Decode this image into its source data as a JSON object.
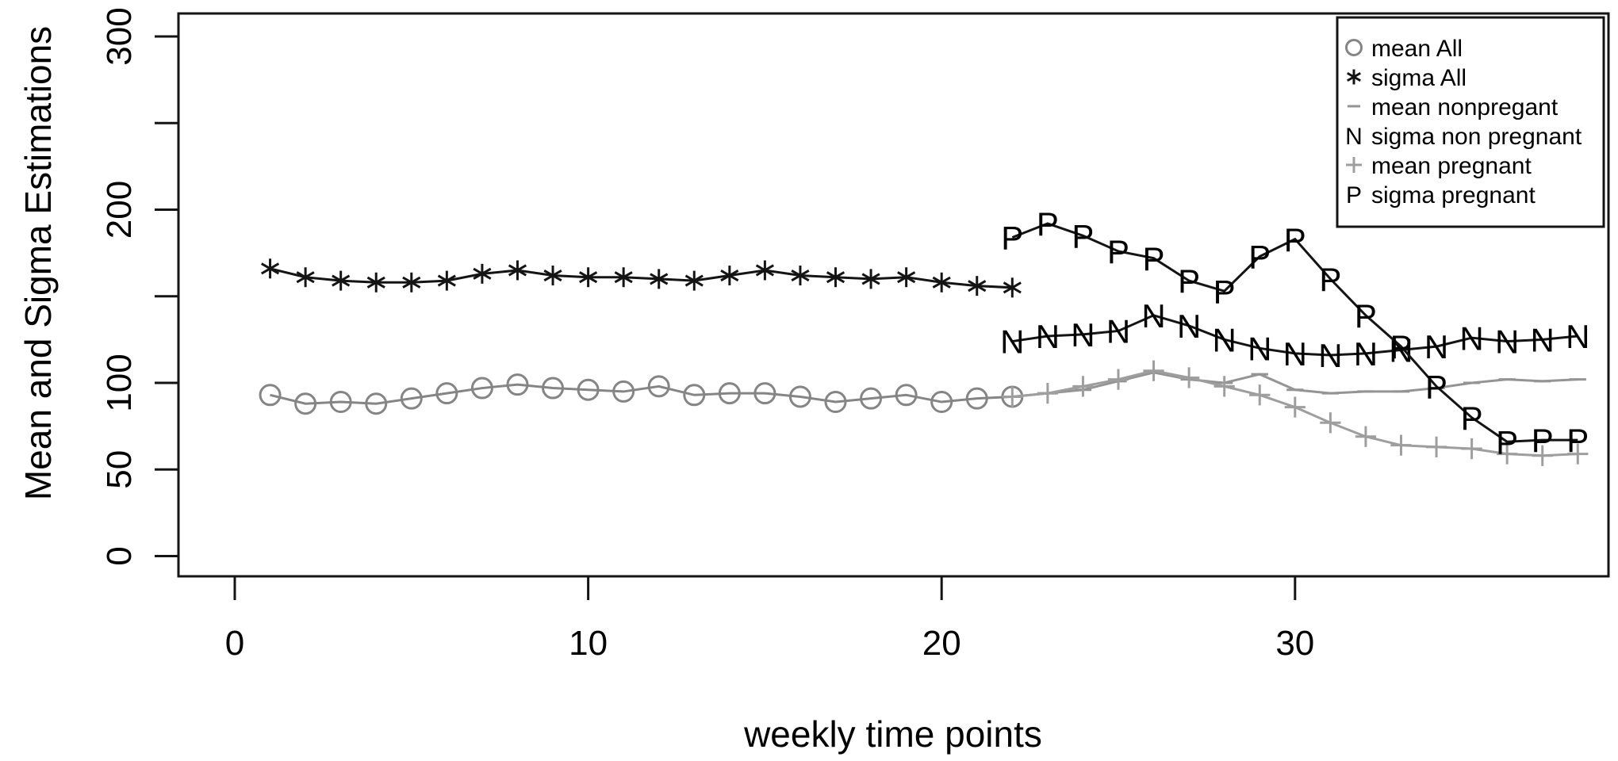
{
  "chart_data": {
    "type": "line",
    "title": "",
    "xlabel": "weekly time points",
    "ylabel": "Mean and Sigma Estimations",
    "xlim": [
      0,
      38
    ],
    "ylim": [
      0,
      300
    ],
    "grid": false,
    "legend_position": "topright",
    "frame_color": "#141414",
    "text_color": "#000000",
    "x_axis": {
      "ticks": [
        0,
        10,
        20,
        30
      ]
    },
    "y_axis": {
      "ticks": [
        0,
        50,
        100,
        150,
        200,
        250,
        300
      ],
      "labeled": [
        0,
        50,
        100,
        200,
        300
      ]
    },
    "series": [
      {
        "id": "mean-all",
        "name": "mean All",
        "marker": "o",
        "color": "#858585",
        "x": [
          1,
          2,
          3,
          4,
          5,
          6,
          7,
          8,
          9,
          10,
          11,
          12,
          13,
          14,
          15,
          16,
          17,
          18,
          19,
          20,
          21,
          22
        ],
        "values": [
          93,
          88,
          89,
          88,
          91,
          94,
          97,
          99,
          97,
          96,
          95,
          98,
          93,
          94,
          94,
          92,
          89,
          91,
          93,
          89,
          91,
          92
        ]
      },
      {
        "id": "sigma-all",
        "name": "sigma All",
        "marker": "*",
        "color": "#141414",
        "x": [
          1,
          2,
          3,
          4,
          5,
          6,
          7,
          8,
          9,
          10,
          11,
          12,
          13,
          14,
          15,
          16,
          17,
          18,
          19,
          20,
          21,
          22
        ],
        "values": [
          166,
          161,
          159,
          158,
          158,
          159,
          163,
          165,
          162,
          161,
          161,
          160,
          159,
          162,
          165,
          162,
          161,
          160,
          161,
          158,
          156,
          155
        ]
      },
      {
        "id": "mean-nonpregant",
        "name": "mean nonpregant",
        "marker": "-",
        "color": "#949494",
        "x": [
          22,
          23,
          24,
          25,
          26,
          27,
          28,
          29,
          30,
          31,
          32,
          33,
          34,
          35,
          36,
          37,
          38
        ],
        "values": [
          92,
          94,
          96,
          101,
          106,
          102,
          100,
          105,
          96,
          94,
          95,
          95,
          97,
          100,
          102,
          101,
          102
        ]
      },
      {
        "id": "sigma-non-pregnant",
        "name": "sigma non pregnant",
        "marker": "N",
        "color": "#141414",
        "x": [
          22,
          23,
          24,
          25,
          26,
          27,
          28,
          29,
          30,
          31,
          32,
          33,
          34,
          35,
          36,
          37,
          38
        ],
        "values": [
          124,
          127,
          128,
          130,
          139,
          133,
          125,
          120,
          117,
          116,
          117,
          119,
          121,
          126,
          124,
          125,
          127
        ]
      },
      {
        "id": "mean-pregnant",
        "name": "mean pregnant",
        "marker": "+",
        "color": "#9e9e9e",
        "x": [
          22,
          23,
          24,
          25,
          26,
          27,
          28,
          29,
          30,
          31,
          32,
          33,
          34,
          35,
          36,
          37,
          38
        ],
        "values": [
          92,
          94,
          98,
          102,
          107,
          103,
          98,
          93,
          86,
          77,
          69,
          64,
          63,
          62,
          59,
          58,
          59
        ]
      },
      {
        "id": "sigma-pregnant",
        "name": "sigma pregnant",
        "marker": "P",
        "color": "#141414",
        "x": [
          22,
          23,
          24,
          25,
          26,
          27,
          28,
          29,
          30,
          31,
          32,
          33,
          34,
          35,
          36,
          37,
          38
        ],
        "values": [
          184,
          192,
          185,
          176,
          172,
          159,
          153,
          173,
          183,
          160,
          139,
          121,
          98,
          80,
          66,
          67,
          67
        ]
      }
    ]
  }
}
